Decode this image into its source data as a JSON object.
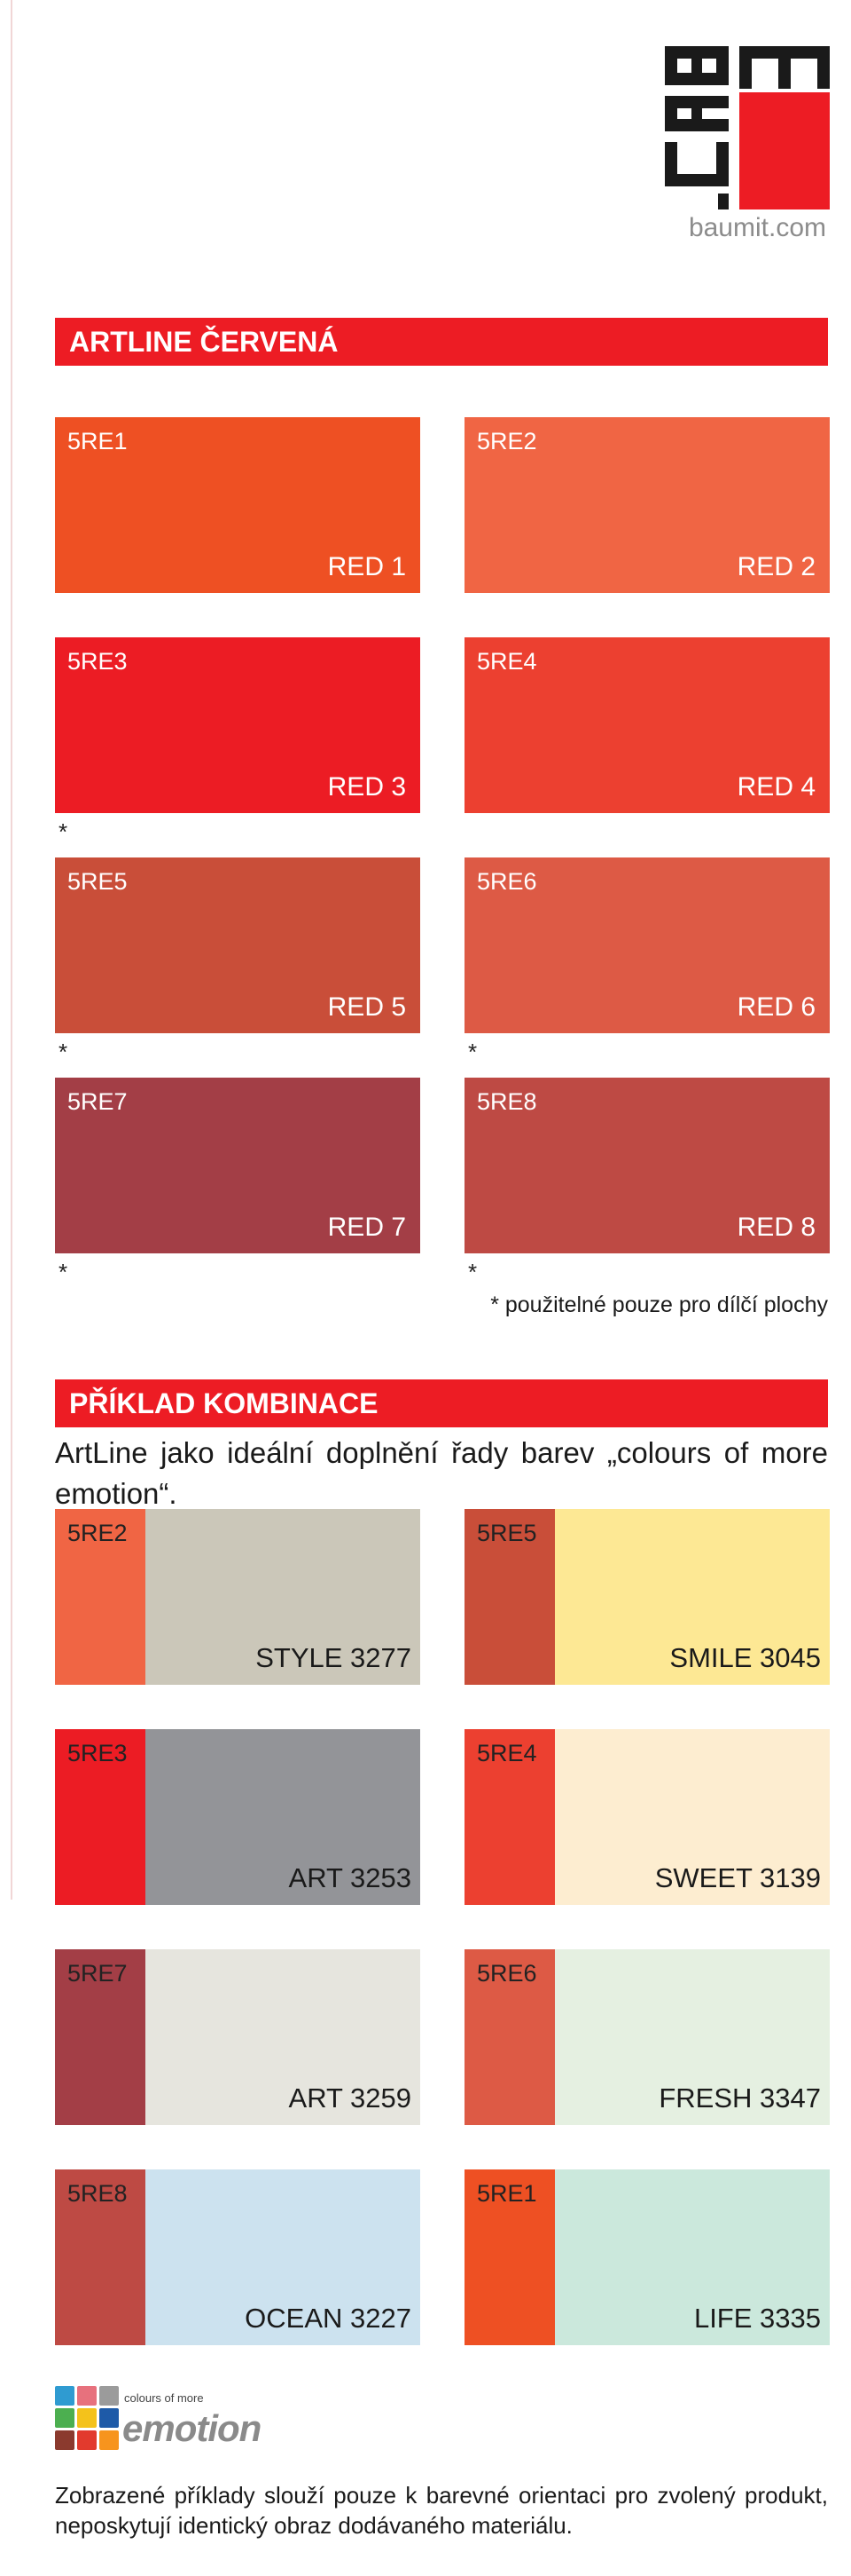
{
  "brand": {
    "logo_letters": [
      "BAU",
      "MIT"
    ],
    "url": "baumit.com"
  },
  "section1": {
    "title": "ARTLINE ČERVENÁ"
  },
  "swatches": [
    {
      "code": "5RE1",
      "name": "RED 1",
      "color": "#ee5023",
      "star": false
    },
    {
      "code": "5RE2",
      "name": "RED 2",
      "color": "#f06544",
      "star": false
    },
    {
      "code": "5RE3",
      "name": "RED 3",
      "color": "#ec1c24",
      "star": true
    },
    {
      "code": "5RE4",
      "name": "RED 4",
      "color": "#ec4030",
      "star": false
    },
    {
      "code": "5RE5",
      "name": "RED 5",
      "color": "#c94e39",
      "star": true
    },
    {
      "code": "5RE6",
      "name": "RED 6",
      "color": "#dd5a45",
      "star": true
    },
    {
      "code": "5RE7",
      "name": "RED 7",
      "color": "#a33e46",
      "star": true
    },
    {
      "code": "5RE8",
      "name": "RED 8",
      "color": "#be4a44",
      "star": true
    }
  ],
  "star_symbol": "*",
  "note": "* použitelné pouze pro dílčí plochy",
  "section2": {
    "title": "PŘÍKLAD KOMBINACE",
    "intro": "ArtLine jako ideální doplnění řady barev „colours of more emotion“."
  },
  "combinations": [
    {
      "code": "5RE2",
      "accent": "#f06544",
      "name": "STYLE 3277",
      "color": "#cbc7b9"
    },
    {
      "code": "5RE5",
      "accent": "#c94e39",
      "name": "SMILE 3045",
      "color": "#fde894"
    },
    {
      "code": "5RE3",
      "accent": "#ec1c24",
      "name": "ART 3253",
      "color": "#939498"
    },
    {
      "code": "5RE4",
      "accent": "#ec4030",
      "name": "SWEET 3139",
      "color": "#fdedd0"
    },
    {
      "code": "5RE7",
      "accent": "#a33e46",
      "name": "ART 3259",
      "color": "#e6e5de"
    },
    {
      "code": "5RE6",
      "accent": "#dd5a45",
      "name": "FRESH 3347",
      "color": "#e5f0e1"
    },
    {
      "code": "5RE8",
      "accent": "#be4a44",
      "name": "OCEAN 3227",
      "color": "#cce2ef"
    },
    {
      "code": "5RE1",
      "accent": "#ee5023",
      "name": "LIFE 3335",
      "color": "#cbe8dc"
    }
  ],
  "emotion_logo": {
    "small": "colours of more",
    "big": "emotion"
  },
  "footer": "Zobrazené příklady slouží pouze k barevné orientaci pro zvolený produkt, neposkytují identický obraz dodávaného materiálu."
}
